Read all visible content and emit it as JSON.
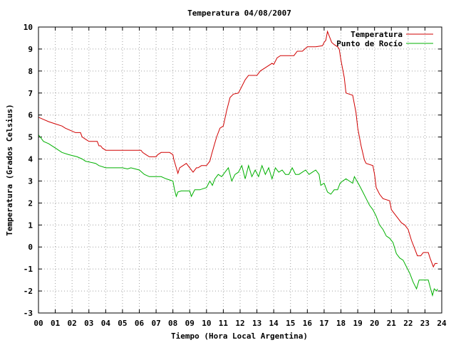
{
  "chart_data": {
    "type": "line",
    "title": "Temperatura 04/08/2007",
    "xlabel": "Tiempo (Hora Local Argentina)",
    "ylabel": "Temperatura (Grados Celsius)",
    "xlim": [
      0,
      24
    ],
    "ylim": [
      -3,
      10
    ],
    "x_ticks": [
      "00",
      "01",
      "02",
      "03",
      "04",
      "05",
      "06",
      "07",
      "08",
      "09",
      "10",
      "11",
      "12",
      "13",
      "14",
      "15",
      "16",
      "17",
      "18",
      "19",
      "20",
      "21",
      "22",
      "23",
      "24"
    ],
    "y_ticks": [
      "-3",
      "-2",
      "-1",
      "0",
      "1",
      "2",
      "3",
      "4",
      "5",
      "6",
      "7",
      "8",
      "9",
      "10"
    ],
    "grid": true,
    "legend_position": "top-right",
    "series": [
      {
        "name": "Temperatura",
        "color": "#d00000",
        "points": [
          [
            0,
            5.9
          ],
          [
            0.3,
            5.8
          ],
          [
            0.6,
            5.7
          ],
          [
            1.0,
            5.6
          ],
          [
            1.4,
            5.5
          ],
          [
            1.6,
            5.4
          ],
          [
            1.9,
            5.3
          ],
          [
            2.2,
            5.2
          ],
          [
            2.5,
            5.2
          ],
          [
            2.6,
            5.0
          ],
          [
            2.8,
            4.9
          ],
          [
            3.0,
            4.8
          ],
          [
            3.5,
            4.8
          ],
          [
            3.6,
            4.6
          ],
          [
            3.7,
            4.6
          ],
          [
            3.8,
            4.5
          ],
          [
            4.0,
            4.4
          ],
          [
            4.5,
            4.4
          ],
          [
            5.0,
            4.4
          ],
          [
            5.5,
            4.4
          ],
          [
            6.1,
            4.4
          ],
          [
            6.2,
            4.3
          ],
          [
            6.4,
            4.2
          ],
          [
            6.6,
            4.1
          ],
          [
            7.0,
            4.1
          ],
          [
            7.1,
            4.2
          ],
          [
            7.3,
            4.3
          ],
          [
            7.8,
            4.3
          ],
          [
            8.0,
            4.2
          ],
          [
            8.05,
            4.0
          ],
          [
            8.2,
            3.6
          ],
          [
            8.3,
            3.35
          ],
          [
            8.4,
            3.6
          ],
          [
            8.6,
            3.7
          ],
          [
            8.8,
            3.8
          ],
          [
            9.0,
            3.6
          ],
          [
            9.2,
            3.4
          ],
          [
            9.4,
            3.6
          ],
          [
            9.5,
            3.6
          ],
          [
            9.7,
            3.7
          ],
          [
            10.0,
            3.7
          ],
          [
            10.2,
            3.9
          ],
          [
            10.3,
            4.2
          ],
          [
            10.45,
            4.6
          ],
          [
            10.6,
            5.0
          ],
          [
            10.8,
            5.4
          ],
          [
            11.0,
            5.5
          ],
          [
            11.2,
            6.2
          ],
          [
            11.4,
            6.8
          ],
          [
            11.6,
            6.95
          ],
          [
            11.9,
            7.0
          ],
          [
            12.1,
            7.3
          ],
          [
            12.3,
            7.6
          ],
          [
            12.5,
            7.8
          ],
          [
            13.0,
            7.8
          ],
          [
            13.2,
            8.0
          ],
          [
            13.6,
            8.2
          ],
          [
            13.9,
            8.35
          ],
          [
            14.0,
            8.3
          ],
          [
            14.2,
            8.6
          ],
          [
            14.4,
            8.7
          ],
          [
            14.8,
            8.7
          ],
          [
            15.2,
            8.7
          ],
          [
            15.4,
            8.9
          ],
          [
            15.7,
            8.9
          ],
          [
            16.0,
            9.1
          ],
          [
            16.5,
            9.1
          ],
          [
            16.9,
            9.15
          ],
          [
            17.0,
            9.3
          ],
          [
            17.1,
            9.4
          ],
          [
            17.2,
            9.8
          ],
          [
            17.3,
            9.6
          ],
          [
            17.45,
            9.3
          ],
          [
            17.6,
            9.2
          ],
          [
            17.8,
            9.1
          ],
          [
            17.9,
            9.0
          ],
          [
            18.0,
            8.5
          ],
          [
            18.2,
            7.7
          ],
          [
            18.3,
            7.0
          ],
          [
            18.7,
            6.9
          ],
          [
            18.9,
            6.1
          ],
          [
            19.0,
            5.4
          ],
          [
            19.2,
            4.6
          ],
          [
            19.4,
            3.95
          ],
          [
            19.5,
            3.8
          ],
          [
            19.9,
            3.7
          ],
          [
            20.0,
            3.3
          ],
          [
            20.1,
            2.7
          ],
          [
            20.3,
            2.4
          ],
          [
            20.5,
            2.2
          ],
          [
            20.9,
            2.1
          ],
          [
            21.0,
            1.7
          ],
          [
            21.1,
            1.6
          ],
          [
            21.3,
            1.4
          ],
          [
            21.6,
            1.1
          ],
          [
            21.8,
            1.0
          ],
          [
            22.0,
            0.8
          ],
          [
            22.2,
            0.3
          ],
          [
            22.4,
            -0.1
          ],
          [
            22.55,
            -0.4
          ],
          [
            22.75,
            -0.4
          ],
          [
            22.9,
            -0.25
          ],
          [
            23.2,
            -0.25
          ],
          [
            23.3,
            -0.5
          ],
          [
            23.5,
            -0.9
          ],
          [
            23.6,
            -0.75
          ],
          [
            23.75,
            -0.75
          ]
        ]
      },
      {
        "name": "Punto de Rocío",
        "color": "#00b000",
        "points": [
          [
            0,
            5.1
          ],
          [
            0.3,
            4.8
          ],
          [
            0.6,
            4.7
          ],
          [
            1.0,
            4.5
          ],
          [
            1.4,
            4.3
          ],
          [
            1.8,
            4.2
          ],
          [
            2.3,
            4.1
          ],
          [
            2.6,
            4.0
          ],
          [
            2.8,
            3.9
          ],
          [
            3.4,
            3.8
          ],
          [
            3.6,
            3.7
          ],
          [
            4.0,
            3.6
          ],
          [
            4.5,
            3.6
          ],
          [
            5.0,
            3.6
          ],
          [
            5.3,
            3.55
          ],
          [
            5.5,
            3.6
          ],
          [
            6.0,
            3.5
          ],
          [
            6.3,
            3.3
          ],
          [
            6.6,
            3.2
          ],
          [
            7.0,
            3.2
          ],
          [
            7.3,
            3.2
          ],
          [
            7.6,
            3.1
          ],
          [
            8.0,
            3.0
          ],
          [
            8.1,
            2.6
          ],
          [
            8.2,
            2.3
          ],
          [
            8.3,
            2.5
          ],
          [
            8.5,
            2.55
          ],
          [
            9.0,
            2.55
          ],
          [
            9.1,
            2.3
          ],
          [
            9.3,
            2.6
          ],
          [
            9.6,
            2.6
          ],
          [
            10.0,
            2.7
          ],
          [
            10.2,
            3.0
          ],
          [
            10.35,
            2.8
          ],
          [
            10.5,
            3.1
          ],
          [
            10.7,
            3.3
          ],
          [
            10.9,
            3.2
          ],
          [
            11.1,
            3.4
          ],
          [
            11.3,
            3.6
          ],
          [
            11.5,
            3.0
          ],
          [
            11.7,
            3.3
          ],
          [
            11.9,
            3.4
          ],
          [
            12.1,
            3.7
          ],
          [
            12.3,
            3.1
          ],
          [
            12.5,
            3.7
          ],
          [
            12.7,
            3.2
          ],
          [
            12.9,
            3.5
          ],
          [
            13.1,
            3.2
          ],
          [
            13.3,
            3.7
          ],
          [
            13.5,
            3.3
          ],
          [
            13.7,
            3.6
          ],
          [
            13.9,
            3.1
          ],
          [
            14.1,
            3.6
          ],
          [
            14.3,
            3.4
          ],
          [
            14.5,
            3.5
          ],
          [
            14.7,
            3.3
          ],
          [
            14.9,
            3.3
          ],
          [
            15.1,
            3.6
          ],
          [
            15.3,
            3.3
          ],
          [
            15.5,
            3.3
          ],
          [
            15.7,
            3.4
          ],
          [
            15.9,
            3.5
          ],
          [
            16.1,
            3.3
          ],
          [
            16.3,
            3.4
          ],
          [
            16.5,
            3.5
          ],
          [
            16.7,
            3.3
          ],
          [
            16.8,
            2.8
          ],
          [
            17.0,
            2.9
          ],
          [
            17.2,
            2.5
          ],
          [
            17.4,
            2.4
          ],
          [
            17.6,
            2.6
          ],
          [
            17.8,
            2.6
          ],
          [
            17.95,
            2.9
          ],
          [
            18.1,
            3.0
          ],
          [
            18.3,
            3.1
          ],
          [
            18.5,
            3.0
          ],
          [
            18.7,
            2.9
          ],
          [
            18.8,
            3.2
          ],
          [
            18.95,
            3.0
          ],
          [
            19.1,
            2.8
          ],
          [
            19.3,
            2.5
          ],
          [
            19.5,
            2.2
          ],
          [
            19.7,
            1.9
          ],
          [
            19.9,
            1.7
          ],
          [
            20.1,
            1.4
          ],
          [
            20.3,
            1.0
          ],
          [
            20.5,
            0.8
          ],
          [
            20.7,
            0.5
          ],
          [
            20.9,
            0.4
          ],
          [
            21.1,
            0.2
          ],
          [
            21.3,
            -0.3
          ],
          [
            21.5,
            -0.5
          ],
          [
            21.7,
            -0.6
          ],
          [
            21.9,
            -0.9
          ],
          [
            22.1,
            -1.2
          ],
          [
            22.3,
            -1.6
          ],
          [
            22.5,
            -1.9
          ],
          [
            22.65,
            -1.5
          ],
          [
            22.8,
            -1.5
          ],
          [
            23.0,
            -1.5
          ],
          [
            23.2,
            -1.5
          ],
          [
            23.3,
            -1.8
          ],
          [
            23.45,
            -2.2
          ],
          [
            23.55,
            -1.9
          ],
          [
            23.7,
            -2.0
          ],
          [
            23.75,
            -1.9
          ]
        ]
      }
    ]
  }
}
